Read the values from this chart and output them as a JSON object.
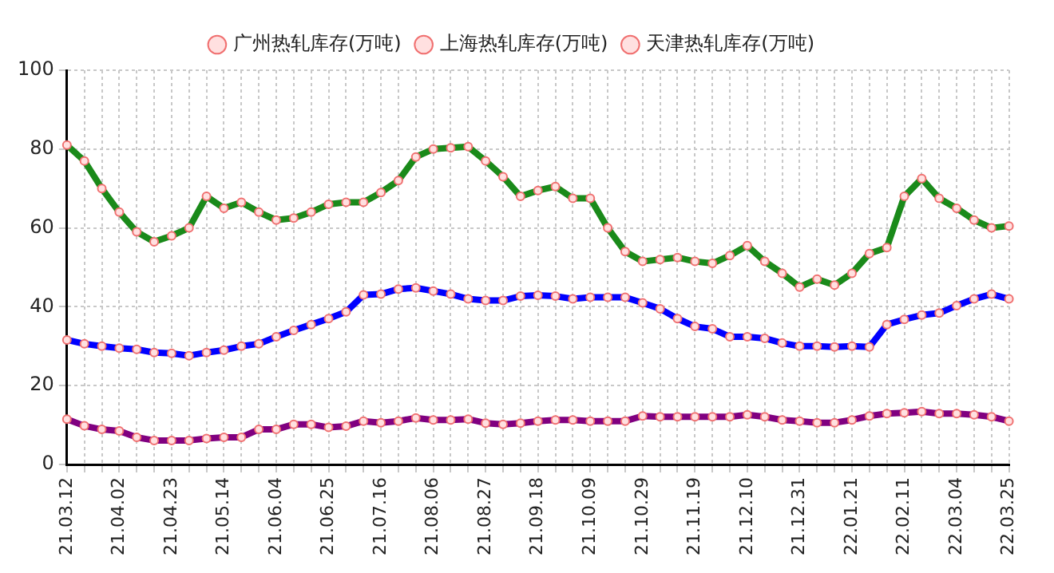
{
  "chart_data": {
    "type": "line",
    "categories": [
      "21.03.12",
      null,
      null,
      "21.04.02",
      null,
      null,
      "21.04.23",
      null,
      null,
      "21.05.14",
      null,
      null,
      "21.06.04",
      null,
      null,
      "21.06.25",
      null,
      null,
      "21.07.16",
      null,
      null,
      "21.08.06",
      null,
      null,
      "21.08.27",
      null,
      null,
      "21.09.18",
      null,
      null,
      "21.10.09",
      null,
      null,
      "21.10.29",
      null,
      null,
      "21.11.19",
      null,
      null,
      "21.12.10",
      null,
      null,
      "21.12.31",
      null,
      null,
      "22.01.21",
      null,
      null,
      "22.02.11",
      null,
      null,
      "22.03.04",
      null,
      null,
      "22.03.25"
    ],
    "series": [
      {
        "name": "广州热轧库存(万吨)",
        "color": "#1a8a1a",
        "values": [
          81,
          77,
          70,
          64,
          59,
          56.5,
          58,
          60,
          68,
          65,
          66.5,
          64,
          62,
          62.5,
          64,
          66,
          66.5,
          66.5,
          69,
          72,
          78,
          80,
          80.3,
          80.6,
          77,
          73,
          68,
          69.5,
          70.5,
          67.5,
          67.5,
          60,
          54,
          51.5,
          52,
          52.5,
          51.5,
          51,
          53,
          55.5,
          51.5,
          48.5,
          45,
          47,
          45.5,
          48.5,
          53.5,
          55,
          68,
          72.5,
          67.5,
          65,
          62,
          60,
          60.5
        ]
      },
      {
        "name": "上海热轧库存(万吨)",
        "color": "#0000ff",
        "values": [
          31.6,
          30.6,
          30,
          29.5,
          29.2,
          28.4,
          28.2,
          27.6,
          28.4,
          29,
          30,
          30.6,
          32.4,
          34,
          35.5,
          37,
          38.7,
          43,
          43.2,
          44.5,
          44.8,
          44,
          43.2,
          42,
          41.6,
          41.6,
          42.7,
          42.9,
          42.7,
          42,
          42.4,
          42.4,
          42.4,
          41,
          39.5,
          37,
          35,
          34.4,
          32.4,
          32.4,
          32,
          30.8,
          30,
          30,
          29.8,
          30,
          29.8,
          35.5,
          36.8,
          37.9,
          38.4,
          40.3,
          42,
          43.2,
          42
        ]
      },
      {
        "name": "天津热轧库存(万吨)",
        "color": "#800080",
        "values": [
          11.5,
          9.8,
          8.9,
          8.5,
          6.9,
          6.1,
          6.1,
          6.1,
          6.6,
          6.9,
          6.9,
          8.9,
          8.9,
          10.2,
          10.2,
          9.4,
          9.7,
          11,
          10.6,
          11,
          11.8,
          11.3,
          11.3,
          11.5,
          10.5,
          10.2,
          10.5,
          11,
          11.3,
          11.3,
          11,
          11,
          11,
          12.3,
          12.1,
          12.1,
          12.1,
          12.1,
          12.1,
          12.6,
          12.1,
          11.3,
          11,
          10.6,
          10.6,
          11.3,
          12.3,
          12.9,
          13.1,
          13.4,
          12.9,
          12.9,
          12.6,
          12.1,
          11
        ]
      }
    ],
    "ylim": [
      0,
      100
    ],
    "yticks": [
      0,
      20,
      40,
      60,
      80,
      100
    ],
    "grid": true,
    "legend": "top",
    "marker": "circle",
    "line_style": "solid"
  }
}
